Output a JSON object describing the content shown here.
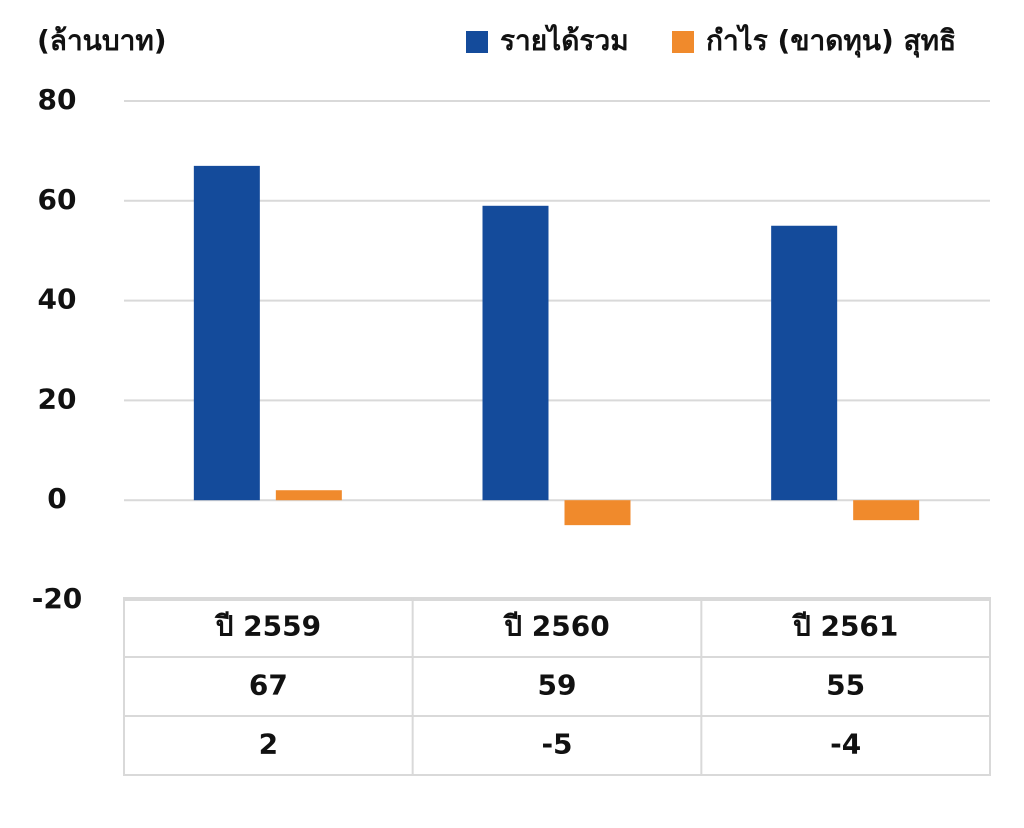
{
  "chart_data": {
    "type": "bar",
    "y_label": "(ล้านบาท)",
    "categories": [
      "ปี 2559",
      "ปี 2560",
      "ปี 2561"
    ],
    "series": [
      {
        "name": "รายได้รวม",
        "color": "#144b9b",
        "values": [
          67,
          59,
          55
        ]
      },
      {
        "name": "กำไร (ขาดทุน) สุทธิ",
        "color": "#f08a2c",
        "values": [
          2,
          -5,
          -4
        ]
      }
    ],
    "ylim": [
      -20,
      80
    ],
    "yticks": [
      -20,
      0,
      20,
      40,
      60,
      80
    ],
    "grid": true,
    "legend": "top-right",
    "data_table": true
  }
}
